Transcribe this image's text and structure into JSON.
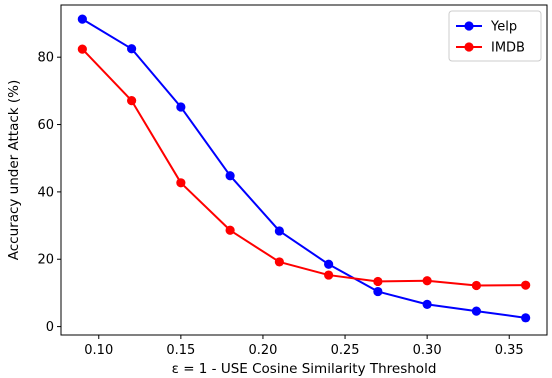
{
  "chart_data": {
    "type": "line",
    "xlabel": "ε = 1 - USE Cosine Similarity Threshold",
    "ylabel": "Accuracy under Attack (%)",
    "x": [
      0.09,
      0.12,
      0.15,
      0.18,
      0.21,
      0.24,
      0.27,
      0.3,
      0.33,
      0.36
    ],
    "xlim": [
      0.077,
      0.373
    ],
    "ylim": [
      -2.5,
      95.5
    ],
    "xticks": [
      0.1,
      0.15,
      0.2,
      0.25,
      0.3,
      0.35
    ],
    "xtick_labels": [
      "0.10",
      "0.15",
      "0.20",
      "0.25",
      "0.30",
      "0.35"
    ],
    "yticks": [
      0,
      20,
      40,
      60,
      80
    ],
    "ytick_labels": [
      "0",
      "20",
      "40",
      "60",
      "80"
    ],
    "grid": false,
    "legend_position": "top-right",
    "series": [
      {
        "name": "Yelp",
        "color": "#0000ff",
        "marker": "circle",
        "values": [
          91.3,
          82.5,
          65.2,
          44.8,
          28.4,
          18.5,
          10.4,
          6.6,
          4.6,
          2.6
        ]
      },
      {
        "name": "IMDB",
        "color": "#ff0000",
        "marker": "circle",
        "values": [
          82.4,
          67.1,
          42.7,
          28.6,
          19.2,
          15.3,
          13.4,
          13.6,
          12.2,
          12.3
        ]
      }
    ]
  }
}
